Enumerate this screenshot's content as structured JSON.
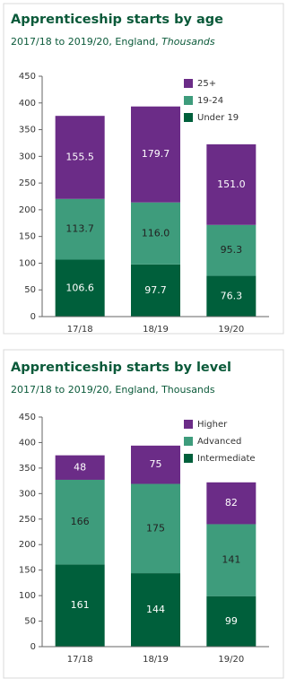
{
  "chart_data": [
    {
      "type": "stacked_bar",
      "title": "Apprenticeship starts by age",
      "subtitle": "2017/18 to 2019/20, England,",
      "subtitle_italic": "Thousands",
      "categories": [
        "17/18",
        "18/19",
        "19/20"
      ],
      "series": [
        {
          "name": "Under 19",
          "color": "#005f3b",
          "values": [
            106.6,
            97.7,
            76.3
          ]
        },
        {
          "name": "19-24",
          "color": "#3e9c7c",
          "values": [
            113.7,
            116.0,
            95.3
          ],
          "value_labels": [
            "113.7",
            "116.0",
            "95.3"
          ]
        },
        {
          "name": "25+",
          "color": "#6b2c87",
          "values": [
            155.5,
            179.7,
            151.0
          ],
          "value_labels": [
            "155.5",
            "179.7",
            "151.0"
          ]
        }
      ],
      "ylim": [
        0,
        450
      ],
      "yticks": [
        0,
        50,
        100,
        150,
        200,
        250,
        300,
        350,
        400,
        450
      ],
      "legend": "top-right"
    },
    {
      "type": "stacked_bar",
      "title": "Apprenticeship starts by level",
      "subtitle": "2017/18 to 2019/20, England, Thousands",
      "categories": [
        "17/18",
        "18/19",
        "19/20"
      ],
      "series": [
        {
          "name": "Intermediate",
          "color": "#005f3b",
          "values": [
            161,
            144,
            99
          ]
        },
        {
          "name": "Advanced",
          "color": "#3e9c7c",
          "values": [
            166,
            175,
            141
          ]
        },
        {
          "name": "Higher",
          "color": "#6b2c87",
          "values": [
            48,
            75,
            82
          ]
        }
      ],
      "ylim": [
        0,
        450
      ],
      "yticks": [
        0,
        50,
        100,
        150,
        200,
        250,
        300,
        350,
        400,
        450
      ],
      "legend": "top-right"
    }
  ]
}
